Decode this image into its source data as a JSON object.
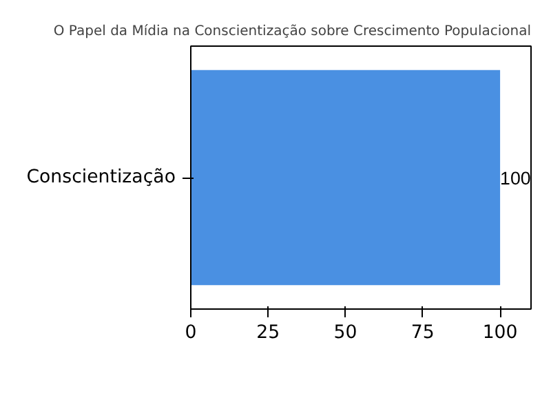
{
  "chart_data": {
    "type": "bar",
    "orientation": "horizontal",
    "title": "O Papel da Mídia na Conscientização sobre Crescimento Populacional",
    "categories": [
      "Conscientização"
    ],
    "values": [
      100
    ],
    "color": "#4a90e2",
    "xlim": [
      0,
      110
    ],
    "xticks": [
      0,
      25,
      50,
      75,
      100
    ],
    "grid": false,
    "data_labels": true
  }
}
